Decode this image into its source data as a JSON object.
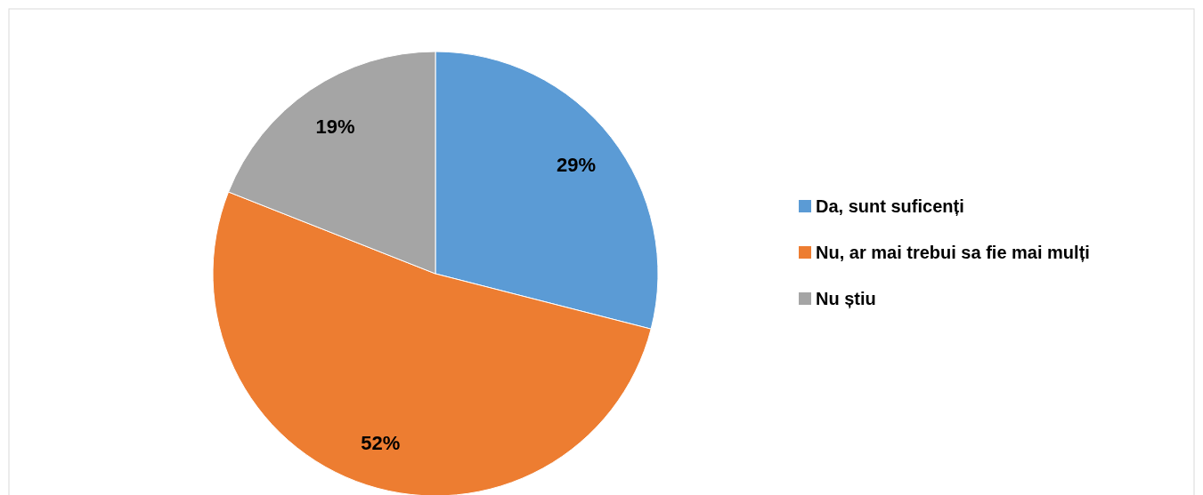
{
  "chart_data": {
    "type": "pie",
    "categories": [
      "Da, sunt suficenți",
      "Nu, ar mai trebui sa fie mai mulți",
      "Nu știu"
    ],
    "values": [
      29,
      52,
      19
    ],
    "colors": [
      "#5b9bd5",
      "#ed7d31",
      "#a5a5a5"
    ],
    "value_labels": [
      "29%",
      "52%",
      "19%"
    ],
    "legend": "right"
  }
}
